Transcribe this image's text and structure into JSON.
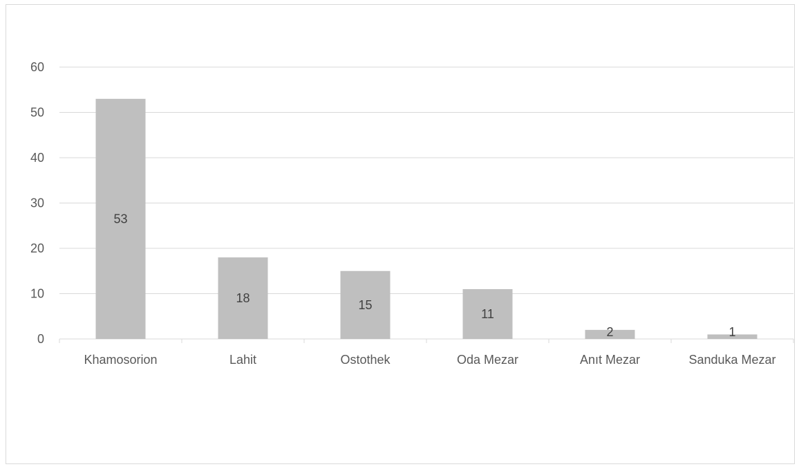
{
  "chart_data": {
    "type": "bar",
    "title": "",
    "xlabel": "",
    "ylabel": "",
    "categories": [
      "Khamosorion",
      "Lahit",
      "Ostothek",
      "Oda Mezar",
      "Anıt Mezar",
      "Sanduka Mezar"
    ],
    "values": [
      53,
      18,
      15,
      11,
      2,
      1
    ],
    "data_labels": [
      "53",
      "18",
      "15",
      "11",
      "2",
      "1"
    ],
    "ylim": [
      0,
      60
    ],
    "yticks": [
      "0",
      "10",
      "20",
      "30",
      "40",
      "50",
      "60"
    ],
    "grid": true,
    "legend": "none",
    "bar_color": "#bfbfbf",
    "grid_color": "#d9d9d9"
  }
}
